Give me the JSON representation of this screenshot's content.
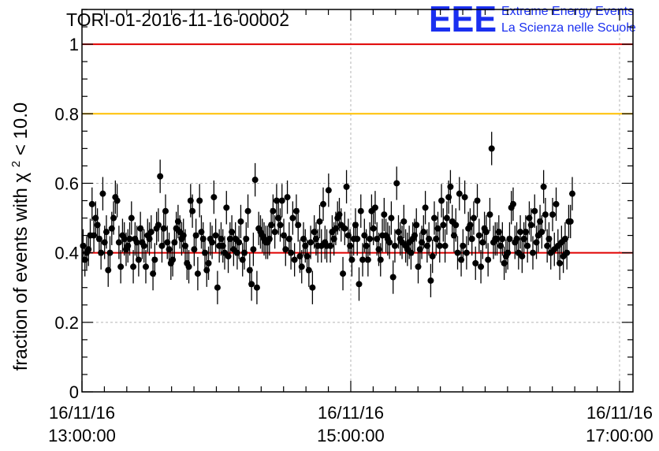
{
  "chart_data": {
    "type": "scatter",
    "title": "TORI-01-2016-11-16-00002",
    "xlabel": "",
    "ylabel_prefix": "fraction of events with ",
    "ylabel_symbol": "χ",
    "ylabel_sup": "2",
    "ylabel_suffix": " < 10.0",
    "ylim": [
      0,
      1.1
    ],
    "x_unit": "minutes since 16/11/16 13:00:00",
    "xlim": [
      0,
      246
    ],
    "grid": true,
    "y_ticks": [
      {
        "value": 0,
        "label": "0"
      },
      {
        "value": 0.2,
        "label": "0.2"
      },
      {
        "value": 0.4,
        "label": "0.4"
      },
      {
        "value": 0.6,
        "label": "0.6"
      },
      {
        "value": 0.8,
        "label": "0.8"
      },
      {
        "value": 1,
        "label": "1"
      }
    ],
    "x_ticks": [
      {
        "value": 0,
        "date": "16/11/16",
        "time": "13:00:00"
      },
      {
        "value": 120,
        "date": "16/11/16",
        "time": "15:00:00"
      },
      {
        "value": 240,
        "date": "16/11/16",
        "time": "17:00:00"
      }
    ],
    "reference_lines": [
      {
        "name": "upper-limit",
        "value": 1.0,
        "color": "#e00000"
      },
      {
        "name": "warning-level",
        "value": 0.8,
        "color": "#ffc000"
      },
      {
        "name": "nominal-level",
        "value": 0.4,
        "color": "#e00000"
      }
    ],
    "series": [
      {
        "name": "fraction",
        "color": "#000000",
        "x_start": 0.5,
        "x_step": 0.8,
        "error": 0.048,
        "values": [
          0.42,
          0.38,
          0.4,
          0.41,
          0.45,
          0.54,
          0.45,
          0.5,
          0.48,
          0.44,
          0.4,
          0.57,
          0.43,
          0.46,
          0.35,
          0.4,
          0.47,
          0.5,
          0.56,
          0.55,
          0.43,
          0.36,
          0.45,
          0.44,
          0.41,
          0.42,
          0.44,
          0.5,
          0.36,
          0.44,
          0.43,
          0.38,
          0.47,
          0.43,
          0.42,
          0.36,
          0.45,
          0.44,
          0.46,
          0.34,
          0.38,
          0.47,
          0.48,
          0.62,
          0.42,
          0.47,
          0.52,
          0.43,
          0.41,
          0.37,
          0.38,
          0.43,
          0.47,
          0.49,
          0.46,
          0.44,
          0.45,
          0.42,
          0.37,
          0.36,
          0.55,
          0.52,
          0.41,
          0.45,
          0.34,
          0.55,
          0.46,
          0.44,
          0.4,
          0.35,
          0.37,
          0.44,
          0.43,
          0.56,
          0.45,
          0.3,
          0.42,
          0.44,
          0.42,
          0.4,
          0.53,
          0.39,
          0.44,
          0.46,
          0.41,
          0.44,
          0.4,
          0.43,
          0.49,
          0.38,
          0.4,
          0.44,
          0.52,
          0.35,
          0.31,
          0.41,
          0.61,
          0.3,
          0.47,
          0.46,
          0.45,
          0.44,
          0.43,
          0.43,
          0.44,
          0.48,
          0.52,
          0.46,
          0.55,
          0.5,
          0.48,
          0.55,
          0.45,
          0.41,
          0.56,
          0.44,
          0.4,
          0.5,
          0.38,
          0.52,
          0.48,
          0.39,
          0.36,
          0.44,
          0.42,
          0.39,
          0.35,
          0.43,
          0.3,
          0.46,
          0.44,
          0.42,
          0.49,
          0.42,
          0.54,
          0.43,
          0.42,
          0.58,
          0.42,
          0.46,
          0.44,
          0.47,
          0.5,
          0.51,
          0.48,
          0.34,
          0.47,
          0.59,
          0.45,
          0.42,
          0.38,
          0.44,
          0.48,
          0.44,
          0.31,
          0.52,
          0.38,
          0.45,
          0.42,
          0.38,
          0.44,
          0.52,
          0.47,
          0.53,
          0.44,
          0.41,
          0.38,
          0.45,
          0.51,
          0.45,
          0.44,
          0.43,
          0.5,
          0.33,
          0.42,
          0.6,
          0.46,
          0.44,
          0.43,
          0.49,
          0.42,
          0.41,
          0.43,
          0.4,
          0.44,
          0.45,
          0.48,
          0.36,
          0.41,
          0.43,
          0.46,
          0.53,
          0.42,
          0.44,
          0.32,
          0.39,
          0.5,
          0.44,
          0.47,
          0.42,
          0.55,
          0.48,
          0.42,
          0.5,
          0.56,
          0.59,
          0.49,
          0.45,
          0.48,
          0.4,
          0.57,
          0.38,
          0.42,
          0.56,
          0.4,
          0.47,
          0.48,
          0.44,
          0.5,
          0.37,
          0.55,
          0.45,
          0.36,
          0.43,
          0.47,
          0.46,
          0.38,
          0.51,
          0.7,
          0.43,
          0.44,
          0.44,
          0.46,
          0.42,
          0.44,
          0.37,
          0.39,
          0.4,
          0.44,
          0.53,
          0.54,
          0.43,
          0.44,
          0.4,
          0.46,
          0.39,
          0.44,
          0.46,
          0.42,
          0.5,
          0.48,
          0.4,
          0.52,
          0.43,
          0.45,
          0.49,
          0.46,
          0.59,
          0.51,
          0.42,
          0.44,
          0.4,
          0.51,
          0.41,
          0.54,
          0.42,
          0.37,
          0.43,
          0.39,
          0.44,
          0.4,
          0.49,
          0.49,
          0.57
        ]
      }
    ]
  },
  "logo": {
    "mark": "EEE",
    "line1": "Extreme Energy Events",
    "line2": "La Scienza nelle Scuole",
    "color": "#1a2ff0"
  }
}
